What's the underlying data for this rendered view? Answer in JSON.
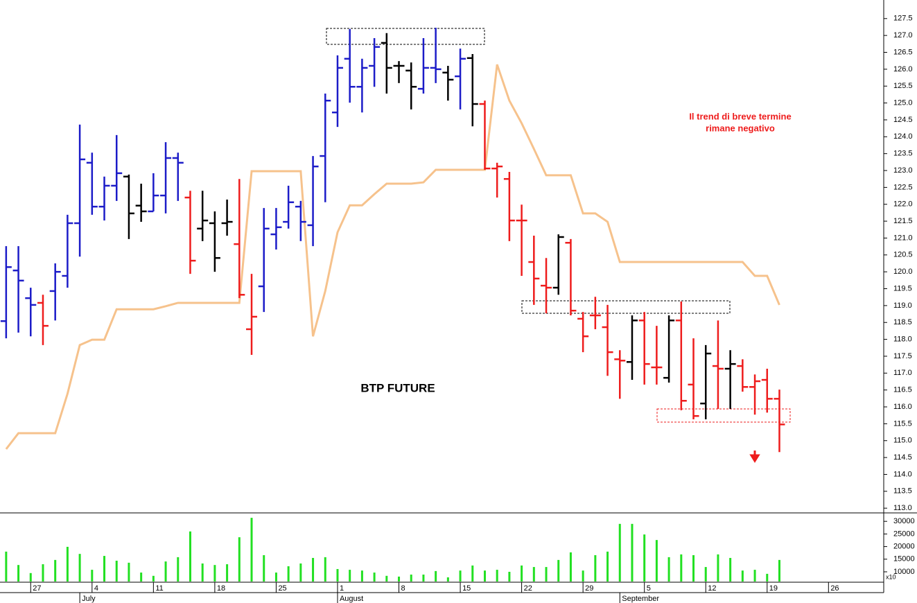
{
  "chart_data": [
    {
      "type": "ohlc",
      "title": "BTP FUTURE",
      "note": [
        "Il trend di breve termine",
        "rimane negativo"
      ],
      "note_color": "#ee1c1c",
      "categories": [
        null,
        null,
        "27",
        null,
        null,
        null,
        null,
        "4",
        null,
        null,
        null,
        null,
        "11",
        null,
        null,
        null,
        null,
        "18",
        null,
        null,
        null,
        null,
        "25",
        null,
        null,
        null,
        null,
        "1",
        null,
        null,
        null,
        null,
        "8",
        null,
        null,
        null,
        null,
        "15",
        null,
        null,
        null,
        null,
        "22",
        null,
        null,
        null,
        null,
        "29",
        null,
        null,
        null,
        null,
        "5",
        null,
        null,
        null,
        null,
        "12",
        null,
        null,
        null,
        null,
        "19",
        null,
        null,
        null,
        null,
        "26",
        null,
        null,
        null,
        null
      ],
      "month_labels": [
        null,
        null,
        null,
        null,
        null,
        null,
        "July",
        null,
        null,
        null,
        null,
        null,
        null,
        null,
        null,
        null,
        null,
        null,
        null,
        null,
        null,
        null,
        null,
        null,
        null,
        null,
        null,
        "August",
        null,
        null,
        null,
        null,
        null,
        null,
        null,
        null,
        null,
        null,
        null,
        null,
        null,
        null,
        null,
        null,
        null,
        null,
        null,
        null,
        null,
        null,
        "September",
        null,
        null,
        null,
        null,
        null,
        null,
        null,
        null,
        null,
        null,
        null,
        null,
        null,
        null,
        null,
        null,
        null,
        null,
        null,
        null,
        null
      ],
      "open": [
        118.54,
        120.04,
        119.22,
        119.08,
        119.43,
        119.88,
        121.44,
        123.23,
        121.93,
        122.55,
        122.82,
        121.96,
        121.79,
        122.26,
        123.37,
        122.2,
        121.28,
        121.44,
        121.44,
        120.82,
        118.3,
        119.57,
        121.11,
        121.48,
        121.93,
        121.38,
        123.43,
        124.72,
        126.31,
        125.48,
        126.1,
        126.78,
        126.1,
        125.96,
        125.42,
        126.04,
        125.9,
        125.79,
        126.33,
        124.97,
        123.06,
        122.75,
        121.52,
        120.29,
        119.59,
        119.53,
        120.86,
        118.61,
        118.71,
        118.36,
        117.41,
        117.33,
        118.56,
        117.17,
        116.86,
        118.56,
        116.66,
        116.1,
        117.21,
        117.13,
        117.21,
        116.59,
        116.8,
        116.24,
        null,
        null,
        null,
        null,
        null,
        null,
        null,
        null
      ],
      "high": [
        120.76,
        120.76,
        119.53,
        119.32,
        120.25,
        121.69,
        124.36,
        123.53,
        122.82,
        124.05,
        122.88,
        122.61,
        122.92,
        123.84,
        123.53,
        122.4,
        122.4,
        121.79,
        122.14,
        122.75,
        119.94,
        121.89,
        121.89,
        122.55,
        122.1,
        123.43,
        125.28,
        126.41,
        127.19,
        126.31,
        126.92,
        127.07,
        126.24,
        126.2,
        126.92,
        127.23,
        126.1,
        126.61,
        126.45,
        125.07,
        123.23,
        122.96,
        121.99,
        121.07,
        120.41,
        121.11,
        120.97,
        118.81,
        119.26,
        119.02,
        117.68,
        118.71,
        118.81,
        118.4,
        118.71,
        119.12,
        118.03,
        117.83,
        118.56,
        117.68,
        117.41,
        116.96,
        117.13,
        116.51,
        null,
        null,
        null,
        null,
        null,
        null,
        null,
        null
      ],
      "low": [
        118.03,
        118.2,
        118.09,
        117.83,
        118.56,
        119.53,
        120.45,
        121.69,
        121.52,
        122.1,
        120.97,
        121.48,
        121.79,
        121.73,
        122.1,
        119.94,
        120.91,
        120.0,
        121.07,
        119.22,
        117.54,
        118.81,
        120.66,
        121.28,
        120.91,
        120.76,
        122.06,
        124.29,
        125.01,
        124.72,
        125.48,
        125.28,
        125.59,
        124.81,
        125.28,
        125.59,
        125.07,
        124.81,
        124.31,
        123.02,
        122.2,
        120.91,
        119.88,
        119.02,
        118.77,
        119.32,
        118.71,
        117.62,
        118.3,
        116.92,
        116.24,
        116.8,
        116.66,
        116.66,
        116.72,
        115.9,
        115.63,
        115.63,
        115.94,
        115.94,
        116.45,
        115.77,
        115.83,
        114.66,
        null,
        null,
        null,
        null,
        null,
        null,
        null,
        null
      ],
      "close": [
        120.14,
        119.74,
        119.02,
        118.4,
        120.0,
        121.44,
        123.33,
        121.93,
        122.55,
        122.92,
        121.73,
        121.79,
        122.26,
        123.37,
        123.23,
        120.33,
        121.52,
        120.41,
        121.48,
        119.32,
        118.67,
        121.28,
        121.32,
        122.06,
        121.48,
        123.12,
        125.07,
        126.04,
        125.48,
        126.04,
        126.66,
        126.04,
        126.1,
        125.48,
        126.04,
        126.0,
        125.69,
        126.31,
        124.97,
        123.06,
        123.12,
        121.52,
        121.52,
        119.8,
        119.53,
        121.03,
        118.85,
        118.09,
        118.71,
        117.62,
        117.37,
        118.56,
        117.27,
        117.17,
        118.56,
        116.18,
        115.73,
        117.58,
        117.13,
        117.27,
        116.59,
        116.76,
        116.24,
        115.48,
        null,
        null,
        null,
        null,
        null,
        null,
        null,
        null
      ],
      "colors": [
        "#1c1cc8",
        "#1c1cc8",
        "#1c1cc8",
        "#ee1c1c",
        "#1c1cc8",
        "#1c1cc8",
        "#1c1cc8",
        "#1c1cc8",
        "#1c1cc8",
        "#1c1cc8",
        "#000000",
        "#000000",
        "#1c1cc8",
        "#1c1cc8",
        "#1c1cc8",
        "#ee1c1c",
        "#000000",
        "#000000",
        "#000000",
        "#ee1c1c",
        "#ee1c1c",
        "#1c1cc8",
        "#1c1cc8",
        "#1c1cc8",
        "#1c1cc8",
        "#1c1cc8",
        "#1c1cc8",
        "#1c1cc8",
        "#1c1cc8",
        "#1c1cc8",
        "#1c1cc8",
        "#000000",
        "#000000",
        "#000000",
        "#1c1cc8",
        "#1c1cc8",
        "#000000",
        "#1c1cc8",
        "#000000",
        "#ee1c1c",
        "#ee1c1c",
        "#ee1c1c",
        "#ee1c1c",
        "#ee1c1c",
        "#ee1c1c",
        "#000000",
        "#ee1c1c",
        "#ee1c1c",
        "#ee1c1c",
        "#ee1c1c",
        "#ee1c1c",
        "#000000",
        "#ee1c1c",
        "#ee1c1c",
        "#000000",
        "#ee1c1c",
        "#ee1c1c",
        "#000000",
        "#ee1c1c",
        "#000000",
        "#ee1c1c",
        "#ee1c1c",
        "#ee1c1c",
        "#ee1c1c",
        null,
        null,
        null,
        null,
        null,
        null,
        null,
        null
      ],
      "stop_line": {
        "color": "#f6c28c",
        "values": [
          114.75,
          115.22,
          115.22,
          115.22,
          115.22,
          116.39,
          117.83,
          117.99,
          117.99,
          118.89,
          118.89,
          118.89,
          118.89,
          118.98,
          119.08,
          119.08,
          119.08,
          119.08,
          119.08,
          119.08,
          122.98,
          122.98,
          122.98,
          122.98,
          122.98,
          118.09,
          119.43,
          121.17,
          121.97,
          121.97,
          122.3,
          122.61,
          122.61,
          122.61,
          122.65,
          123.02,
          123.02,
          123.02,
          123.02,
          123.02,
          126.14,
          125.07,
          124.4,
          123.64,
          122.86,
          122.86,
          122.86,
          121.73,
          121.73,
          121.48,
          120.29,
          120.29,
          120.29,
          120.29,
          120.29,
          120.29,
          120.29,
          120.29,
          120.29,
          120.29,
          120.29,
          119.88,
          119.88,
          119.02,
          null,
          null,
          null,
          null,
          null,
          null,
          null,
          null
        ]
      },
      "ylim": [
        112.86,
        128.05
      ],
      "yticks": [
        {
          "value": 113,
          "label": "113.0"
        },
        {
          "value": 113.5,
          "label": "113.5"
        },
        {
          "value": 114,
          "label": "114.0"
        },
        {
          "value": 114.5,
          "label": "114.5"
        },
        {
          "value": 115,
          "label": "115.0"
        },
        {
          "value": 115.5,
          "label": "115.5"
        },
        {
          "value": 116,
          "label": "116.0"
        },
        {
          "value": 116.5,
          "label": "116.5"
        },
        {
          "value": 117,
          "label": "117.0"
        },
        {
          "value": 117.5,
          "label": "117.5"
        },
        {
          "value": 118,
          "label": "118.0"
        },
        {
          "value": 118.5,
          "label": "118.5"
        },
        {
          "value": 119,
          "label": "119.0"
        },
        {
          "value": 119.5,
          "label": "119.5"
        },
        {
          "value": 120,
          "label": "120.0"
        },
        {
          "value": 120.5,
          "label": "120.5"
        },
        {
          "value": 121,
          "label": "121.0"
        },
        {
          "value": 121.5,
          "label": "121.5"
        },
        {
          "value": 122,
          "label": "122.0"
        },
        {
          "value": 122.5,
          "label": "122.5"
        },
        {
          "value": 123,
          "label": "123.0"
        },
        {
          "value": 123.5,
          "label": "123.5"
        },
        {
          "value": 124,
          "label": "124.0"
        },
        {
          "value": 124.5,
          "label": "124.5"
        },
        {
          "value": 125,
          "label": "125.0"
        },
        {
          "value": 125.5,
          "label": "125.5"
        },
        {
          "value": 126,
          "label": "126.0"
        },
        {
          "value": 126.5,
          "label": "126.5"
        },
        {
          "value": 127,
          "label": "127.0"
        },
        {
          "value": 127.5,
          "label": "127.5"
        }
      ]
    },
    {
      "type": "bar",
      "color": "#22e022",
      "scale_label": "x10",
      "values": [
        18000,
        12700,
        9500,
        13000,
        14700,
        19900,
        17100,
        10800,
        16300,
        14400,
        13600,
        9700,
        8400,
        14100,
        15800,
        26000,
        13300,
        12700,
        13000,
        23700,
        31400,
        16600,
        9700,
        12200,
        13300,
        15500,
        15800,
        11100,
        10800,
        10500,
        9700,
        8400,
        8100,
        8900,
        8900,
        10300,
        7800,
        10500,
        12500,
        10500,
        10800,
        10000,
        12500,
        11900,
        11900,
        14700,
        17700,
        10500,
        16600,
        18000,
        29000,
        29000,
        24800,
        22600,
        15800,
        16900,
        16600,
        11900,
        16900,
        15500,
        10500,
        10800,
        9200,
        14700,
        null,
        null,
        null,
        null,
        null,
        null,
        null,
        null
      ],
      "ylim": [
        6150,
        32800
      ],
      "yticks": [
        10000,
        15000,
        20000,
        25000,
        30000
      ]
    }
  ]
}
